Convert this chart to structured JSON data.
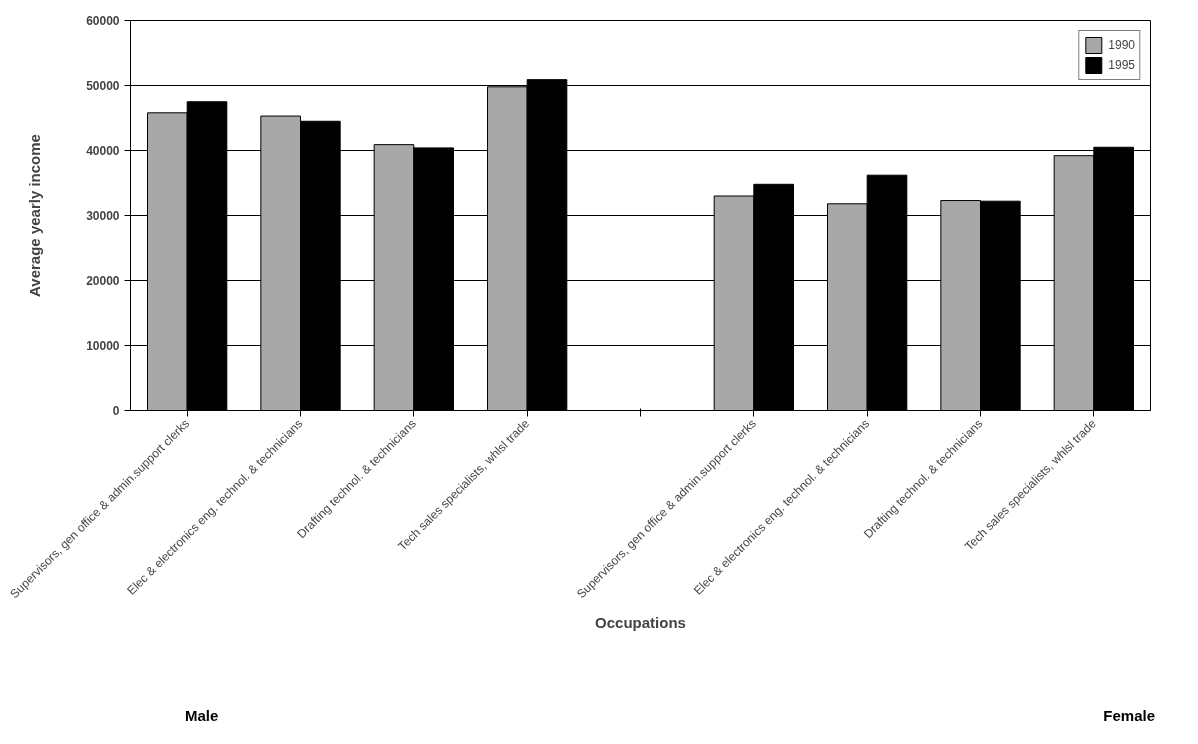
{
  "chart_data": {
    "type": "bar",
    "ylabel": "Average yearly income",
    "xlabel": "Occupations",
    "categories": [
      "Supervisors, gen office & admin.support clerks",
      "Elec & electronics eng. technol. & technicians",
      "Drafting technol. & technicians",
      "Tech sales specialists, whlsl trade",
      null,
      "Supervisors, gen office & admin.support clerks",
      "Elec & electronics eng. technol. & technicians",
      "Drafting technol. & technicians",
      "Tech sales specialists, whlsl trade"
    ],
    "series": [
      {
        "name": "1990",
        "color": "#a8a8a8",
        "values": [
          45800,
          45300,
          40900,
          49800,
          null,
          33000,
          31800,
          32300,
          39200
        ]
      },
      {
        "name": "1995",
        "color": "#000000",
        "values": [
          47500,
          44500,
          40400,
          50900,
          null,
          34800,
          36200,
          32200,
          40500
        ]
      }
    ],
    "ylim": [
      0,
      60000
    ],
    "yticks": [
      0,
      10000,
      20000,
      30000,
      40000,
      50000,
      60000
    ],
    "grid": "y",
    "legend": "top right",
    "annotations": [
      "Male",
      "Female"
    ]
  }
}
